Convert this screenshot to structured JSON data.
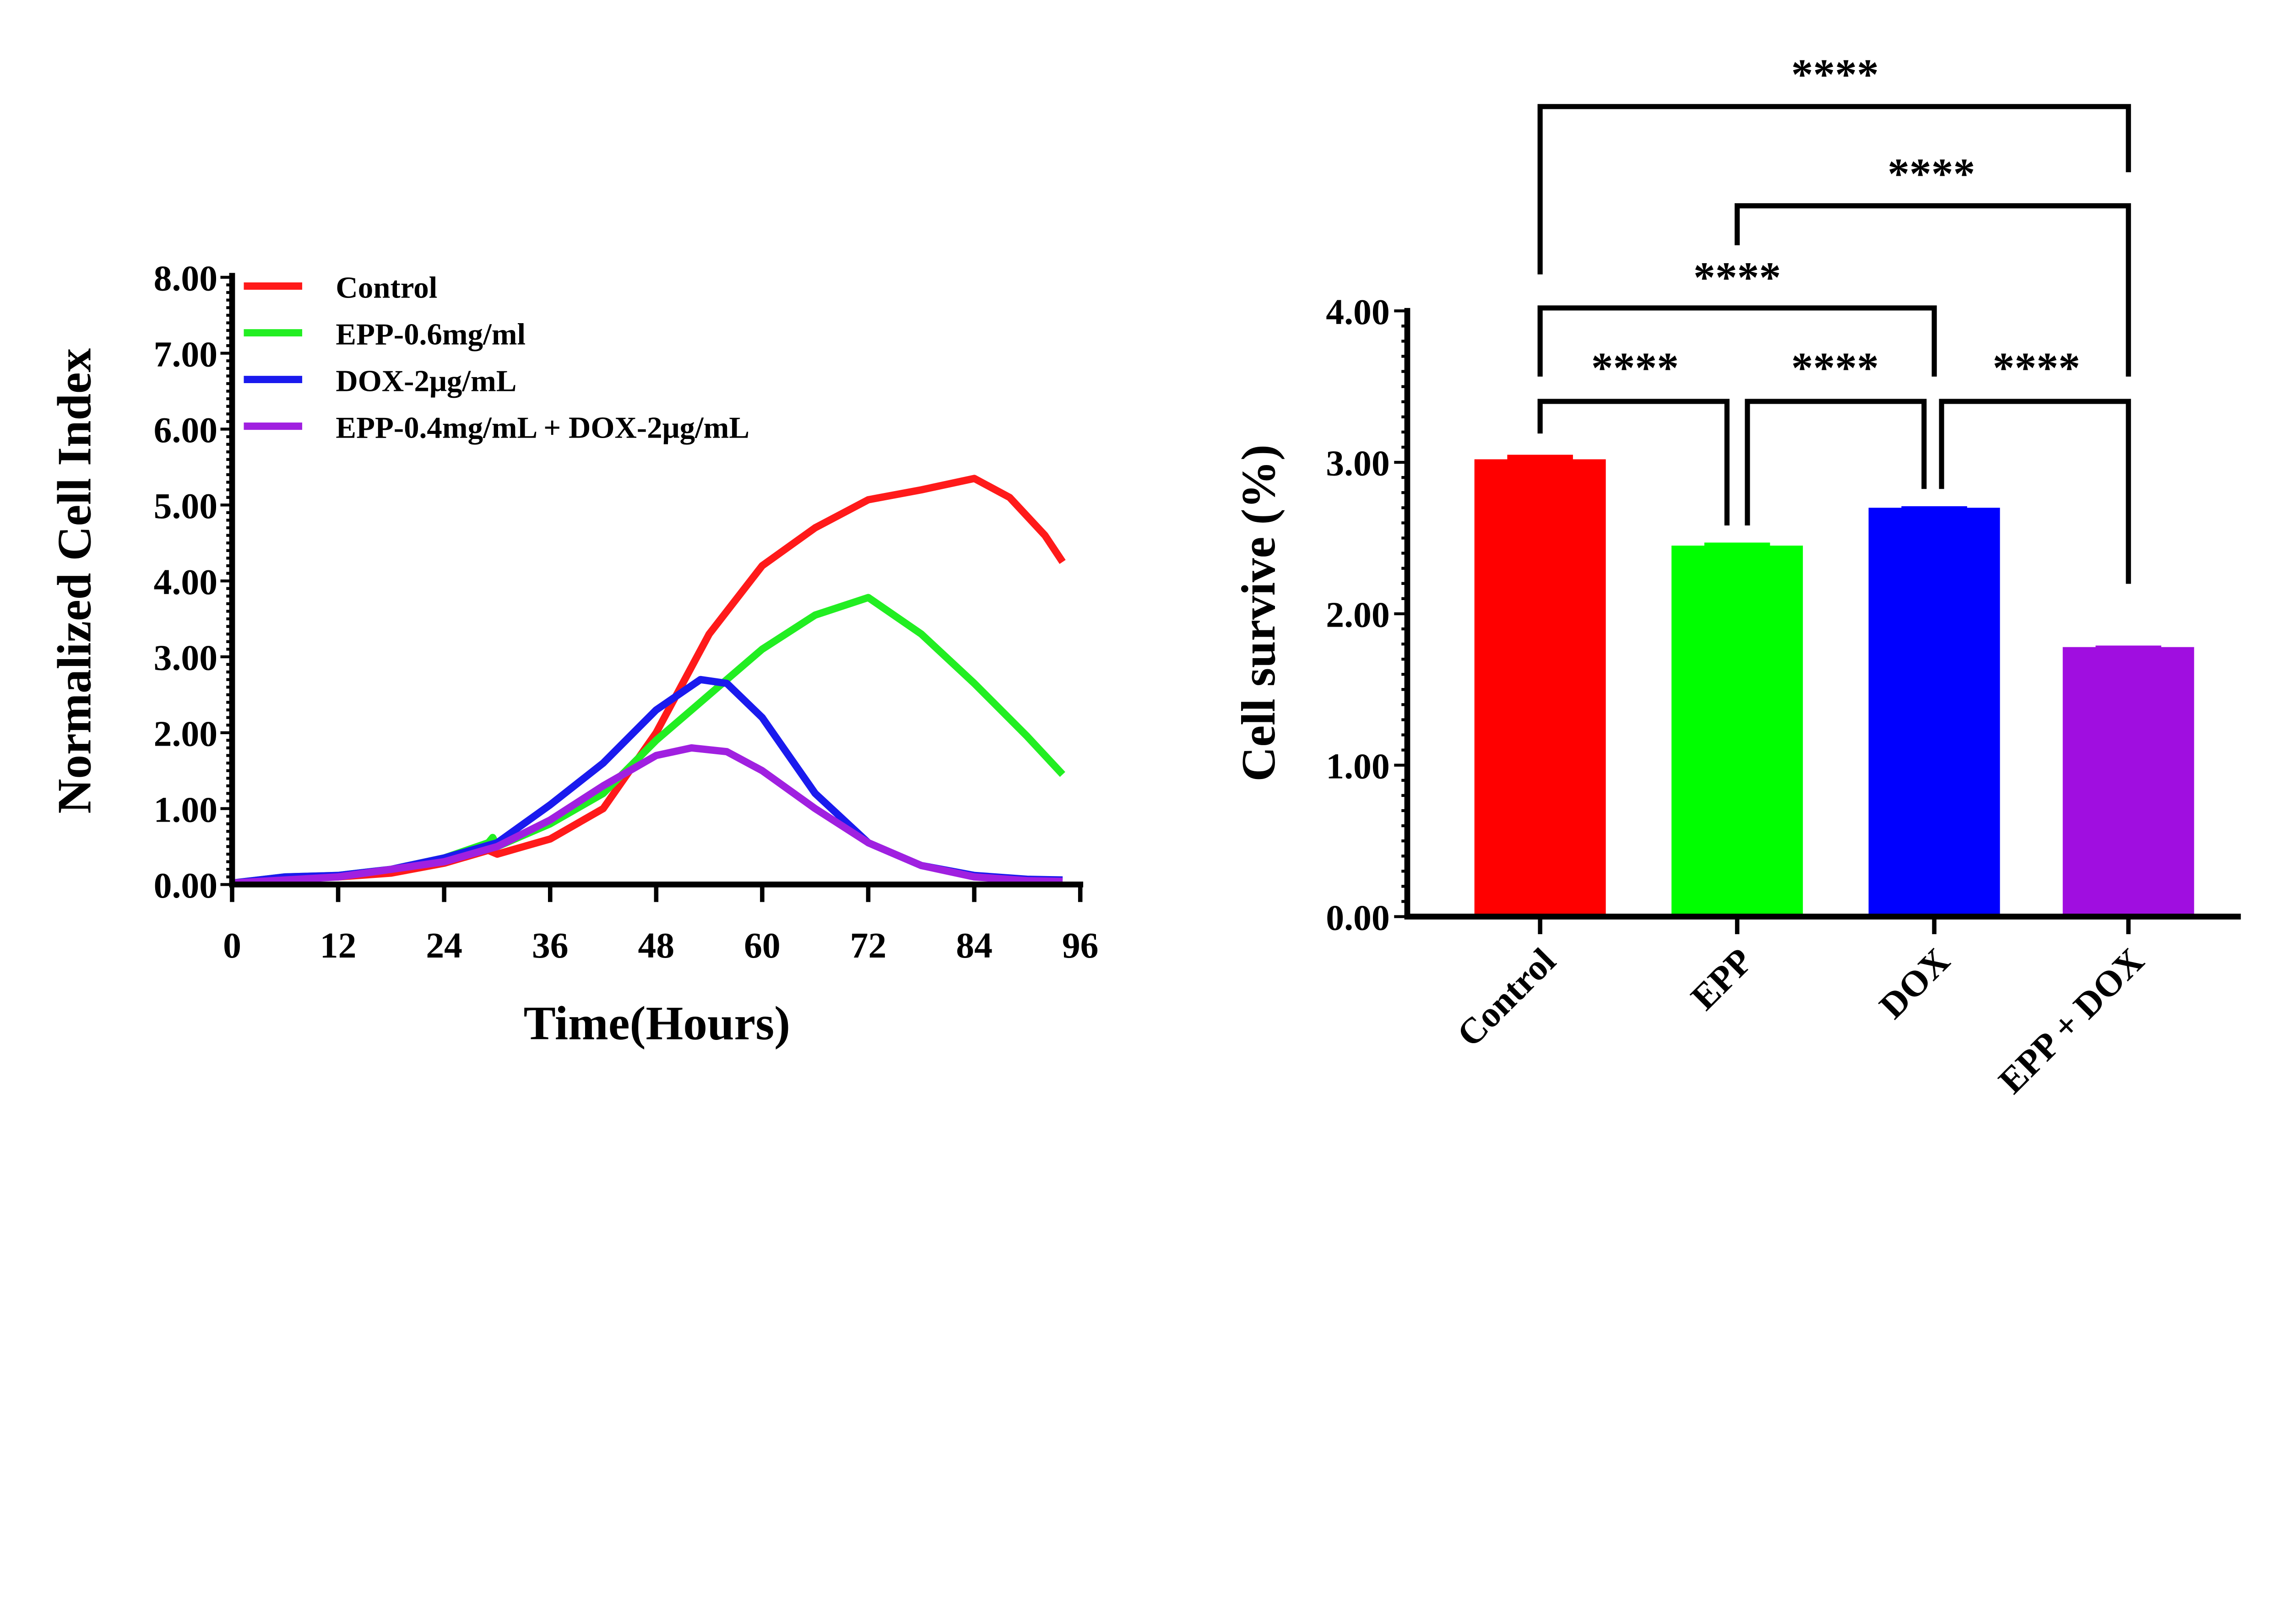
{
  "chart_data": [
    {
      "type": "line",
      "xlabel": "Time(Hours)",
      "ylabel": "Normalized Cell Index",
      "xlim": [
        0,
        96
      ],
      "ylim": [
        0,
        8
      ],
      "xticks": [
        "0",
        "12",
        "24",
        "36",
        "48",
        "60",
        "72",
        "84",
        "96"
      ],
      "yticks": [
        "0.00",
        "1.00",
        "2.00",
        "3.00",
        "4.00",
        "5.00",
        "6.00",
        "7.00",
        "8.00"
      ],
      "grid": false,
      "legend_position": "top-left",
      "series": [
        {
          "name": "Control",
          "color": "#ff1a1a",
          "x": [
            0,
            6,
            12,
            18,
            24,
            29,
            30,
            36,
            42,
            48,
            54,
            60,
            66,
            72,
            78,
            84,
            88,
            92,
            94
          ],
          "y": [
            0.02,
            0.08,
            0.1,
            0.15,
            0.28,
            0.45,
            0.4,
            0.6,
            1.0,
            2.0,
            3.3,
            4.2,
            4.7,
            5.07,
            5.2,
            5.35,
            5.1,
            4.6,
            4.25
          ]
        },
        {
          "name": "EPP-0.6mg/ml",
          "color": "#22ee22",
          "x": [
            0,
            6,
            12,
            18,
            24,
            29,
            29.5,
            30,
            36,
            42,
            48,
            54,
            60,
            66,
            72,
            78,
            84,
            90,
            94
          ],
          "y": [
            0.02,
            0.1,
            0.12,
            0.2,
            0.35,
            0.55,
            0.62,
            0.5,
            0.8,
            1.2,
            1.9,
            2.5,
            3.1,
            3.55,
            3.78,
            3.3,
            2.65,
            1.95,
            1.45
          ]
        },
        {
          "name": "DOX-2μg/mL",
          "color": "#1a1aee",
          "x": [
            0,
            6,
            12,
            18,
            24,
            30,
            36,
            42,
            48,
            53,
            56,
            60,
            66,
            72,
            78,
            84,
            90,
            94
          ],
          "y": [
            0.02,
            0.1,
            0.12,
            0.2,
            0.35,
            0.55,
            1.05,
            1.6,
            2.3,
            2.7,
            2.65,
            2.2,
            1.2,
            0.55,
            0.25,
            0.12,
            0.07,
            0.06
          ]
        },
        {
          "name": "EPP-0.4mg/mL + DOX-2μg/mL",
          "color": "#a020e0",
          "x": [
            0,
            12,
            24,
            30,
            36,
            42,
            48,
            52,
            56,
            60,
            66,
            72,
            78,
            84,
            90,
            94
          ],
          "y": [
            0.02,
            0.1,
            0.3,
            0.5,
            0.85,
            1.3,
            1.7,
            1.8,
            1.75,
            1.5,
            1.0,
            0.55,
            0.25,
            0.1,
            0.05,
            0.04
          ]
        }
      ]
    },
    {
      "type": "bar",
      "ylabel": "Cell survive (%)",
      "ylim": [
        0,
        4
      ],
      "yticks": [
        "0.00",
        "1.00",
        "2.00",
        "3.00",
        "4.00"
      ],
      "categories": [
        "Control",
        "EPP",
        "DOX",
        "EPP + DOX"
      ],
      "values": [
        3.02,
        2.45,
        2.7,
        1.78
      ],
      "error_upper": [
        3.05,
        2.47,
        2.71,
        1.79
      ],
      "colors": [
        "#ff0000",
        "#00ff00",
        "#0000ff",
        "#a00ee0"
      ],
      "grid": false,
      "significance": [
        {
          "from": "Control",
          "to": "EPP",
          "label": "****"
        },
        {
          "from": "EPP",
          "to": "DOX",
          "label": "****"
        },
        {
          "from": "DOX",
          "to": "EPP + DOX",
          "label": "****"
        },
        {
          "from": "Control",
          "to": "DOX",
          "label": "****"
        },
        {
          "from": "EPP",
          "to": "EPP + DOX",
          "label": "****"
        },
        {
          "from": "Control",
          "to": "EPP + DOX",
          "label": "****"
        }
      ]
    }
  ]
}
